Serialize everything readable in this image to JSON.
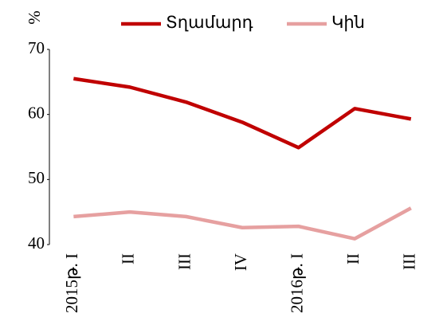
{
  "chart_data": {
    "type": "line",
    "y_label": "%",
    "categories": [
      "2015թ. I",
      "II",
      "III",
      "IV",
      "2016թ. I",
      "II",
      "III"
    ],
    "series": [
      {
        "name": "Տղամարդ",
        "color": "#c00000",
        "values": [
          65.5,
          64.2,
          61.9,
          58.8,
          54.9,
          60.9,
          59.3
        ]
      },
      {
        "name": "Կին",
        "color": "#e6a0a0",
        "values": [
          44.3,
          45.0,
          44.3,
          42.6,
          42.8,
          40.9,
          45.6
        ]
      }
    ],
    "ylim": [
      40,
      70
    ],
    "yticks": [
      40,
      50,
      60,
      70
    ],
    "grid": false,
    "legend": "top"
  }
}
